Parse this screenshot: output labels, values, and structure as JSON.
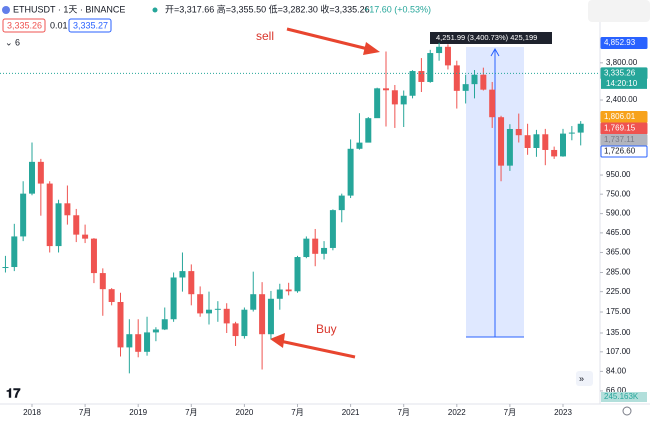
{
  "chart_data": {
    "type": "candlestick",
    "symbol": "ETHUSDT · 1天 · BINANCE",
    "ohlc": "开=3,317.66 高=3,355.50 低=3,282.30 收=3,335.26",
    "change": "+17.60 (+0.53%)",
    "bid": "3,335.26",
    "spread": "0.01",
    "ask": "3,335.27",
    "indicator_count": "6",
    "annotations": [
      "sell",
      "Buy"
    ],
    "measure_label": "4,251.99 (3,400.73%) 425,199",
    "x": [
      "2017-10",
      "2017-11",
      "2017-12",
      "2018-01",
      "2018-02",
      "2018-03",
      "2018-04",
      "2018-05",
      "2018-06",
      "2018-07",
      "2018-08",
      "2018-09",
      "2018-10",
      "2018-11",
      "2018-12",
      "2019-01",
      "2019-02",
      "2019-03",
      "2019-04",
      "2019-05",
      "2019-06",
      "2019-07",
      "2019-08",
      "2019-09",
      "2019-10",
      "2019-11",
      "2019-12",
      "2020-01",
      "2020-02",
      "2020-03",
      "2020-04",
      "2020-05",
      "2020-06",
      "2020-07",
      "2020-08",
      "2020-09",
      "2020-10",
      "2020-11",
      "2020-12",
      "2021-01",
      "2021-02",
      "2021-03",
      "2021-04",
      "2021-05",
      "2021-06",
      "2021-07",
      "2021-08",
      "2021-09",
      "2021-10",
      "2021-11",
      "2021-12",
      "2022-01",
      "2022-02",
      "2022-03",
      "2022-04",
      "2022-05",
      "2022-06",
      "2022-07",
      "2022-08",
      "2022-09",
      "2022-10",
      "2022-11",
      "2022-12",
      "2023-01",
      "2023-02",
      "2023-03"
    ],
    "open": [
      302,
      305,
      445,
      755,
      1118,
      855,
      395,
      670,
      578,
      455,
      433,
      283,
      232,
      198,
      113,
      133,
      107,
      136,
      141,
      160,
      268,
      290,
      218,
      172,
      180,
      182,
      152,
      130,
      180,
      218,
      133,
      206,
      231,
      226,
      345,
      433,
      359,
      386,
      616,
      737,
      1314,
      1418,
      1918,
      2773,
      2707,
      2274,
      2530,
      3433,
      3000,
      4288,
      4631,
      3682,
      2688,
      2920,
      3281,
      2728,
      1941,
      1067,
      1678,
      1554,
      1327,
      1572,
      1295,
      1196,
      1585,
      1605
    ],
    "high": [
      350,
      520,
      880,
      1420,
      1160,
      880,
      700,
      835,
      625,
      515,
      436,
      300,
      235,
      222,
      160,
      160,
      165,
      145,
      185,
      285,
      365,
      315,
      240,
      225,
      200,
      195,
      155,
      185,
      288,
      253,
      227,
      248,
      251,
      350,
      445,
      488,
      420,
      622,
      755,
      1475,
      2040,
      1945,
      2795,
      4372,
      2890,
      2700,
      3470,
      4030,
      4460,
      4868,
      4778,
      3900,
      3280,
      3480,
      3580,
      3000,
      1975,
      1780,
      2030,
      1790,
      1660,
      1680,
      1350,
      1680,
      1740,
      1850
    ],
    "low": [
      285,
      290,
      420,
      740,
      575,
      365,
      365,
      515,
      415,
      410,
      250,
      167,
      190,
      101,
      82,
      100,
      102,
      122,
      140,
      155,
      225,
      190,
      165,
      150,
      155,
      135,
      115,
      126,
      176,
      86,
      125,
      180,
      215,
      222,
      340,
      308,
      335,
      375,
      530,
      715,
      1300,
      1450,
      1935,
      1730,
      1700,
      1720,
      2450,
      2650,
      2970,
      3900,
      3500,
      2160,
      2300,
      2450,
      2700,
      1700,
      880,
      1000,
      1420,
      1220,
      1190,
      1073,
      1160,
      1190,
      1460,
      1370
    ],
    "close": [
      305,
      445,
      755,
      1118,
      855,
      395,
      670,
      578,
      455,
      433,
      283,
      232,
      198,
      113,
      133,
      107,
      136,
      141,
      160,
      268,
      290,
      218,
      172,
      180,
      182,
      152,
      130,
      180,
      218,
      133,
      206,
      231,
      226,
      345,
      433,
      359,
      386,
      616,
      737,
      1314,
      1418,
      1918,
      2773,
      2707,
      2274,
      2530,
      3433,
      3000,
      4288,
      4631,
      3682,
      2688,
      2920,
      3281,
      2728,
      1941,
      1067,
      1678,
      1554,
      1327,
      1572,
      1295,
      1196,
      1585,
      1605,
      1790
    ],
    "up_color": "#26a69a",
    "down_color": "#ef5350",
    "log_scale": true,
    "ylim": [
      59,
      5700
    ],
    "yticks": [
      {
        "value": 3800,
        "label": "3,800.00"
      },
      {
        "value": 2400,
        "label": "2,400.00"
      },
      {
        "value": 950,
        "label": "950.00"
      },
      {
        "value": 750,
        "label": "750.00"
      },
      {
        "value": 590,
        "label": "590.00"
      },
      {
        "value": 465,
        "label": "465.00"
      },
      {
        "value": 365,
        "label": "365.00"
      },
      {
        "value": 285,
        "label": "285.00"
      },
      {
        "value": 225,
        "label": "225.00"
      },
      {
        "value": 175,
        "label": "175.00"
      },
      {
        "value": 135,
        "label": "135.00"
      },
      {
        "value": 107,
        "label": "107.00"
      },
      {
        "value": 84,
        "label": "84.00"
      },
      {
        "value": 66,
        "label": "66.00"
      }
    ],
    "xticks": [
      {
        "value": "2018-01",
        "label": "2018"
      },
      {
        "value": "2018-07",
        "label": "7月"
      },
      {
        "value": "2019-01",
        "label": "2019"
      },
      {
        "value": "2019-07",
        "label": "7月"
      },
      {
        "value": "2020-01",
        "label": "2020"
      },
      {
        "value": "2020-07",
        "label": "7月"
      },
      {
        "value": "2021-01",
        "label": "2021"
      },
      {
        "value": "2021-07",
        "label": "7月"
      },
      {
        "value": "2022-01",
        "label": "2022"
      },
      {
        "value": "2022-07",
        "label": "7月"
      },
      {
        "value": "2023-01",
        "label": "2023"
      }
    ],
    "price_labels": [
      {
        "value": 4852.93,
        "label": "4,852.93",
        "color": "#2962ff"
      },
      {
        "value": 3335.26,
        "label": "3,335.26",
        "color": "#26a69a"
      },
      {
        "value": 1806.01,
        "label": "1,806.01",
        "color": "#f7a21b"
      },
      {
        "value": 1769.15,
        "label": "1,769.15",
        "color": "#ef5350"
      },
      {
        "value": 1737.11,
        "label": "1,737.11",
        "color": "#b2b5be"
      },
      {
        "value": 1726.6,
        "label": "1,726.60",
        "color": "#ffffff"
      }
    ],
    "countdown": "14:20:10",
    "volume_label": "245.163K"
  }
}
